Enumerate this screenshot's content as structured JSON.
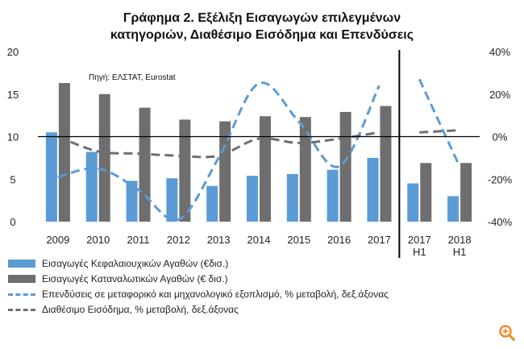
{
  "title": {
    "line1": "Γράφημα 2. Εξέλιξη Εισαγωγών επιλεγμένων",
    "line2": "κατηγοριών, Διαθέσιμο Εισόδημα και Επενδύσεις"
  },
  "source": "Πηγή: ΕΛΣΤΑΤ, Eurostat",
  "colors": {
    "capital_goods": "#5b9bd5",
    "consumer_goods": "#6e6e6e",
    "investment_line": "#5b9bd5",
    "income_line": "#6e6e6e",
    "axis": "#000000",
    "zoom_icon": "#f08a24"
  },
  "icons": {
    "zoom": "zoom-in-icon"
  },
  "chart_data": {
    "type": "bar",
    "categories": [
      [
        "2009"
      ],
      [
        "2010"
      ],
      [
        "2011"
      ],
      [
        "2012"
      ],
      [
        "2013"
      ],
      [
        "2014"
      ],
      [
        "2015"
      ],
      [
        "2016"
      ],
      [
        "2017"
      ],
      [
        "2017",
        "Η1"
      ],
      [
        "2018",
        "Η1"
      ]
    ],
    "y_left": {
      "min": 0,
      "max": 20,
      "ticks": [
        "0",
        "5",
        "10",
        "15",
        "20"
      ]
    },
    "y_right": {
      "min": -40,
      "max": 40,
      "ticks": [
        "-40%",
        "-20%",
        "0%",
        "20%",
        "40%"
      ]
    },
    "grid": false,
    "legend_position": "bottom",
    "divider_after_category": 8,
    "series": [
      {
        "name": "Εισαγωγές  Κεφαλαιουχικών Αγαθών  (€δισ.)",
        "kind": "bar",
        "axis": "left",
        "values": [
          10.5,
          8.2,
          4.8,
          5.1,
          4.2,
          5.4,
          5.6,
          6.1,
          7.5,
          4.5,
          3.0
        ]
      },
      {
        "name": "Εισαγωγές  Καταναλωτικών Αγαθών  (€ δισ.)",
        "kind": "bar",
        "axis": "left",
        "values": [
          16.3,
          15.0,
          13.4,
          12.0,
          11.8,
          12.4,
          12.3,
          12.9,
          13.6,
          6.9,
          6.9
        ]
      },
      {
        "name": "Επενδύσεις  σε  μεταφορικό  και  μηχανολογικό  εξοπλισμό,  %  μεταβολή,  δεξ.άξονας",
        "kind": "line",
        "dash": "dashed",
        "axis": "right",
        "values": [
          -19,
          -15,
          -25,
          -39,
          -10,
          25,
          7,
          -14,
          24,
          27,
          -14
        ]
      },
      {
        "name": "Διαθέσιμο  Εισόδημα, %  μεταβολή,  δεξ.άξονας",
        "kind": "line",
        "dash": "dashed",
        "axis": "right",
        "values": [
          0,
          -7,
          -8,
          -9,
          -9,
          -1,
          -3,
          -1,
          2,
          2,
          3
        ]
      }
    ]
  }
}
